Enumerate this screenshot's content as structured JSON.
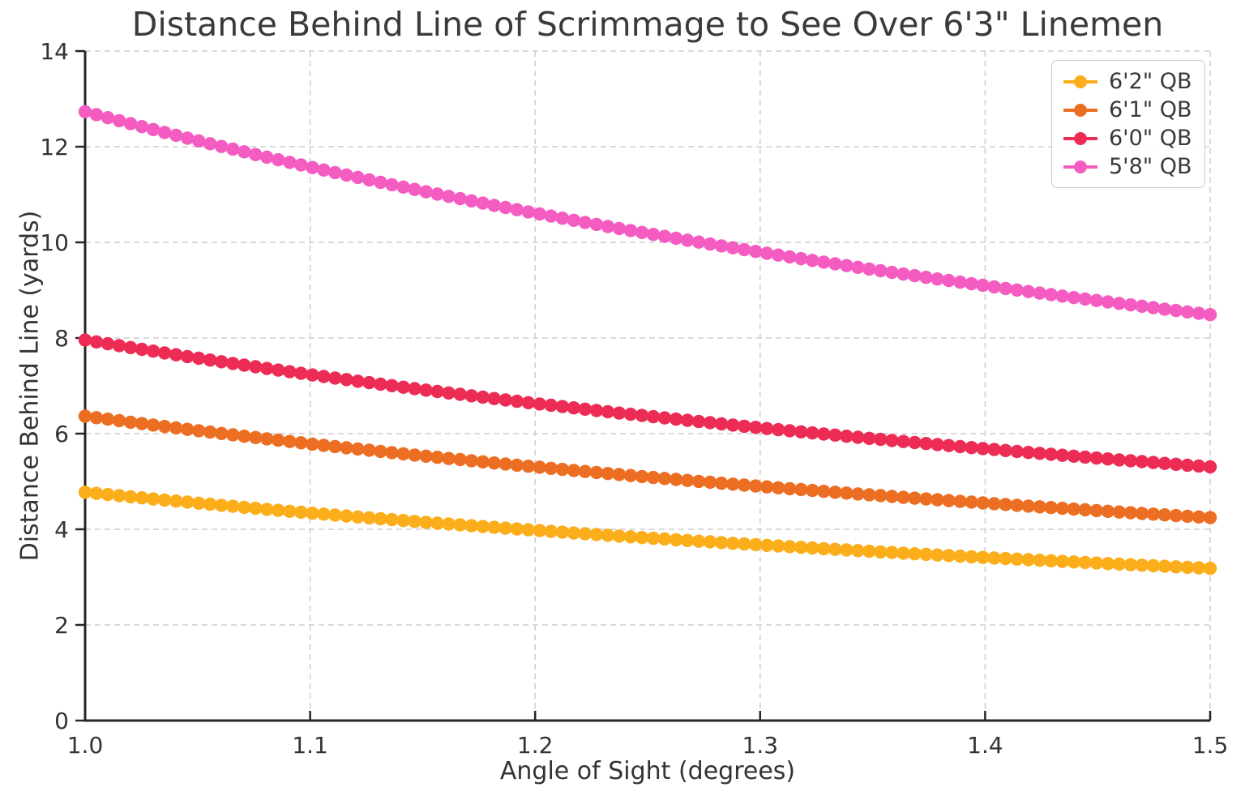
{
  "chart_data": {
    "type": "line",
    "title": "Distance Behind Line of Scrimmage to See Over 6'3\" Linemen",
    "xlabel": "Angle of Sight (degrees)",
    "ylabel": "Distance Behind Line (yards)",
    "xlim": [
      1.0,
      1.5
    ],
    "ylim": [
      0,
      14
    ],
    "xticks": [
      1.0,
      1.1,
      1.2,
      1.3,
      1.4,
      1.5
    ],
    "xtick_labels": [
      "1.0",
      "1.1",
      "1.2",
      "1.3",
      "1.4",
      "1.5"
    ],
    "yticks": [
      0,
      2,
      4,
      6,
      8,
      10,
      12,
      14
    ],
    "ytick_labels": [
      "0",
      "2",
      "4",
      "6",
      "8",
      "10",
      "12",
      "14"
    ],
    "grid": {
      "on": true,
      "style": "dashed",
      "color": "#cdcdcd"
    },
    "spine_color": "#262626",
    "text_color": "#333333",
    "legend_position": "upper right",
    "marker": "circle",
    "n_points_per_series": 100,
    "x_anchors": [
      1.0,
      1.02,
      1.04,
      1.06,
      1.08,
      1.1,
      1.12,
      1.14,
      1.16,
      1.18,
      1.2,
      1.22,
      1.24,
      1.26,
      1.28,
      1.3,
      1.32,
      1.34,
      1.36,
      1.38,
      1.4,
      1.42,
      1.44,
      1.46,
      1.48,
      1.5
    ],
    "series": [
      {
        "name": "6'2\" QB",
        "color": "#FBAD1A",
        "values": [
          4.774,
          4.681,
          4.591,
          4.504,
          4.421,
          4.34,
          4.263,
          4.188,
          4.116,
          4.046,
          3.979,
          3.913,
          3.85,
          3.789,
          3.73,
          3.673,
          3.617,
          3.563,
          3.511,
          3.46,
          3.41,
          3.362,
          3.316,
          3.27,
          3.226,
          3.183
        ]
      },
      {
        "name": "6'1\" QB",
        "color": "#EC6E23",
        "values": [
          6.366,
          6.241,
          6.121,
          6.006,
          5.895,
          5.787,
          5.684,
          5.584,
          5.488,
          5.395,
          5.305,
          5.218,
          5.134,
          5.052,
          4.974,
          4.897,
          4.823,
          4.751,
          4.681,
          4.613,
          4.547,
          4.483,
          4.421,
          4.36,
          4.301,
          4.244
        ]
      },
      {
        "name": "6'0\" QB",
        "color": "#EC2C55",
        "values": [
          7.958,
          7.802,
          7.652,
          7.507,
          7.368,
          7.234,
          7.105,
          6.98,
          6.86,
          6.744,
          6.631,
          6.523,
          6.417,
          6.316,
          6.217,
          6.121,
          6.029,
          5.939,
          5.851,
          5.766,
          5.684,
          5.604,
          5.526,
          5.45,
          5.377,
          5.305
        ]
      },
      {
        "name": "5'8\" QB",
        "color": "#F45CC1",
        "values": [
          12.732,
          12.483,
          12.243,
          12.012,
          11.789,
          11.575,
          11.368,
          11.169,
          10.976,
          10.79,
          10.61,
          10.436,
          10.268,
          10.105,
          9.947,
          9.794,
          9.646,
          9.502,
          9.362,
          9.226,
          9.095,
          8.966,
          8.842,
          8.721,
          8.603,
          8.488
        ]
      }
    ]
  }
}
